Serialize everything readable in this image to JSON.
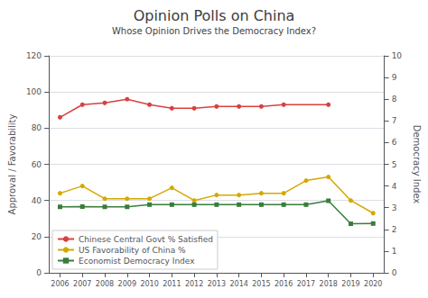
{
  "chart_data": {
    "type": "line",
    "title": "Opinion Polls on China",
    "subtitle": "Whose Opinion Drives the Democracy Index?",
    "ylabel": "Approval / Favorability",
    "y2label": "Democracy Index",
    "x": [
      2006,
      2007,
      2008,
      2009,
      2010,
      2011,
      2012,
      2013,
      2014,
      2015,
      2016,
      2017,
      2018,
      2019,
      2020
    ],
    "xlim": [
      2005.5,
      2020.5
    ],
    "xticks": [
      2006,
      2007,
      2008,
      2009,
      2010,
      2011,
      2012,
      2013,
      2014,
      2015,
      2016,
      2017,
      2018,
      2019,
      2020
    ],
    "ylim": [
      0,
      120
    ],
    "yticks": [
      0,
      20,
      40,
      60,
      80,
      100,
      120
    ],
    "y2lim": [
      0,
      10
    ],
    "y2ticks": [
      0,
      1,
      2,
      3,
      4,
      5,
      6,
      7,
      8,
      9,
      10
    ],
    "grid": true,
    "legend": "lower left",
    "series": [
      {
        "name": "Chinese Central Govt % Satisfied",
        "color": "#d94040",
        "marker": "circle",
        "x": [
          2006,
          2007,
          2008,
          2009,
          2010,
          2011,
          2012,
          2013,
          2014,
          2015,
          2016,
          2018
        ],
        "values": [
          86,
          93,
          94,
          96,
          93,
          91,
          91,
          92,
          92,
          92,
          93,
          93
        ]
      },
      {
        "name": "US Favorability of China %",
        "color": "#d4a800",
        "marker": "circle",
        "values": [
          44,
          48,
          41,
          41,
          41,
          47,
          40,
          43,
          43,
          44,
          44,
          51,
          53,
          40,
          33
        ]
      },
      {
        "name": "Economist Democracy Index",
        "color": "#3a7d3a",
        "marker": "square",
        "axis": "y2",
        "values": [
          3.04,
          3.05,
          3.04,
          3.04,
          3.14,
          3.14,
          3.14,
          3.14,
          3.14,
          3.14,
          3.14,
          3.14,
          3.32,
          2.26,
          2.27
        ]
      }
    ]
  }
}
